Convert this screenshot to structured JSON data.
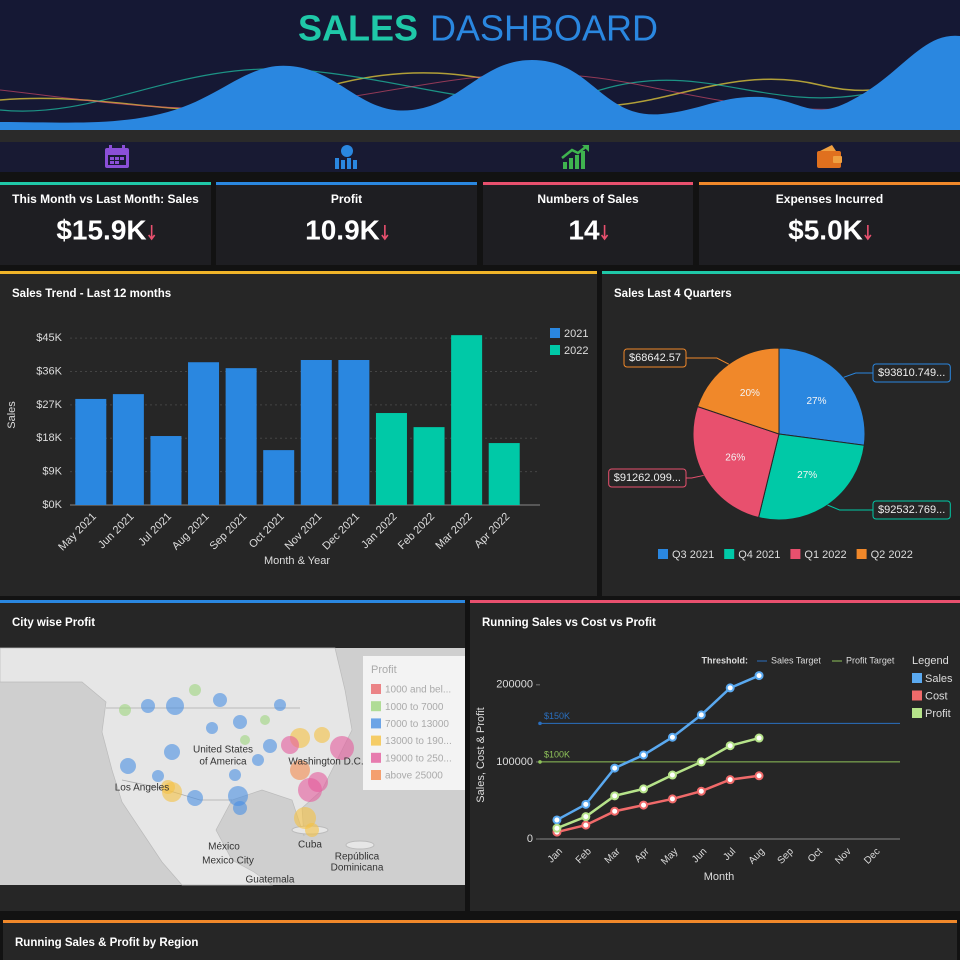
{
  "header": {
    "title": [
      "SALES",
      "DASHBOARD"
    ],
    "colors": [
      "#1fc8a8",
      "#2a87e0"
    ]
  },
  "kpis": [
    {
      "label": "This Month vs Last Month: Sales",
      "value": "$15.9K",
      "trend": "down",
      "accent": "#1fc8a8"
    },
    {
      "label": "Profit",
      "value": "10.9K",
      "trend": "down",
      "accent": "#2a87e0"
    },
    {
      "label": "Numbers of Sales",
      "value": "14",
      "trend": "down",
      "accent": "#e8506e"
    },
    {
      "label": "Expenses Incurred",
      "value": "$5.0K",
      "trend": "down",
      "accent": "#f0882a"
    }
  ],
  "chart_data": [
    {
      "type": "bar",
      "title": "Sales Trend - Last 12 months",
      "accent": "#f0b429",
      "x_label": "Month & Year",
      "y_label": "Sales",
      "categories": [
        "May 2021",
        "Jun 2021",
        "Jul 2021",
        "Aug 2021",
        "Sep 2021",
        "Oct 2021",
        "Nov 2021",
        "Dec 2021",
        "Jan 2022",
        "Feb 2022",
        "Mar 2022",
        "Apr 2022"
      ],
      "series": [
        {
          "name": "2021",
          "color": "#2a87e0",
          "values": [
            28600,
            29900,
            18600,
            38500,
            36900,
            14800,
            39100,
            39100,
            null,
            null,
            null,
            null
          ]
        },
        {
          "name": "2022",
          "color": "#00c9a7",
          "values": [
            null,
            null,
            null,
            null,
            null,
            null,
            null,
            null,
            24800,
            21000,
            45800,
            16700
          ]
        }
      ],
      "ylim": [
        0,
        48000
      ],
      "yticks": [
        {
          "value": 0,
          "label": "$0K"
        },
        {
          "value": 9000,
          "label": "$9K"
        },
        {
          "value": 18000,
          "label": "$18K"
        },
        {
          "value": 27000,
          "label": "$27K"
        },
        {
          "value": 36000,
          "label": "$36K"
        },
        {
          "value": 45000,
          "label": "$45K"
        }
      ],
      "grid": true
    },
    {
      "type": "pie",
      "title": "Sales Last 4 Quarters",
      "accent": "#1fc8a8",
      "categories": [
        "Q3 2021",
        "Q4 2021",
        "Q1 2022",
        "Q2 2022"
      ],
      "values": [
        93810.749,
        92532.769,
        91262.099,
        68642.57
      ],
      "value_labels": [
        "$93810.749...",
        "$92532.769...",
        "$91262.099...",
        "$68642.57"
      ],
      "percent_labels": [
        "27%",
        "27%",
        "26%",
        "20%"
      ],
      "colors": [
        "#2a87e0",
        "#00c9a7",
        "#e8506e",
        "#f0882a"
      ]
    },
    {
      "type": "map",
      "title": "City wise Profit",
      "accent": "#2a87e0",
      "legend_title": "Profit",
      "categories": [
        "1000 and bel...",
        "1000 to 7000",
        "7000 to 13000",
        "13000 to 190...",
        "19000 to 250...",
        "above 25000"
      ],
      "colors": [
        "#e8676a",
        "#9fd67e",
        "#4a90e2",
        "#f5c242",
        "#e45c9c",
        "#f48a4e"
      ],
      "places": [
        "United States",
        "of America",
        "Washington D.C.",
        "Los Angeles",
        "México",
        "Mexico City",
        "Cuba",
        "República",
        "Dominicana",
        "Guatemala"
      ]
    },
    {
      "type": "line",
      "title": "Running Sales vs Cost vs Profit",
      "accent": "#e8506e",
      "x_label": "Month",
      "y_label": "Sales, Cost & Profit",
      "categories": [
        "Jan",
        "Feb",
        "Mar",
        "Apr",
        "May",
        "Jun",
        "Jul",
        "Aug",
        "Sep",
        "Oct",
        "Nov",
        "Dec"
      ],
      "series": [
        {
          "name": "Sales",
          "color": "#5aa9f0",
          "values": [
            24700,
            45000,
            92000,
            109000,
            132000,
            161000,
            196000,
            212000,
            null,
            null,
            null,
            null
          ]
        },
        {
          "name": "Cost",
          "color": "#f06a6a",
          "values": [
            9000,
            18000,
            36000,
            44000,
            52000,
            62000,
            77000,
            82000,
            null,
            null,
            null,
            null
          ]
        },
        {
          "name": "Profit",
          "color": "#b6e38a",
          "values": [
            14000,
            29000,
            56000,
            65000,
            83000,
            100000,
            121000,
            131000,
            null,
            null,
            null,
            null
          ]
        }
      ],
      "thresholds_title": "Threshold:",
      "thresholds": [
        {
          "name": "Sales Target",
          "value": 150000,
          "label": "$150K",
          "color": "#2a6fbf"
        },
        {
          "name": "Profit Target",
          "value": 100000,
          "label": "$100K",
          "color": "#8fc35a"
        }
      ],
      "legend_title": "Legend",
      "ylim": [
        0,
        240000
      ],
      "yticks": [
        0,
        100000,
        200000
      ]
    }
  ],
  "footer": {
    "title": "Running Sales & Profit by Region",
    "accent": "#f0882a"
  }
}
